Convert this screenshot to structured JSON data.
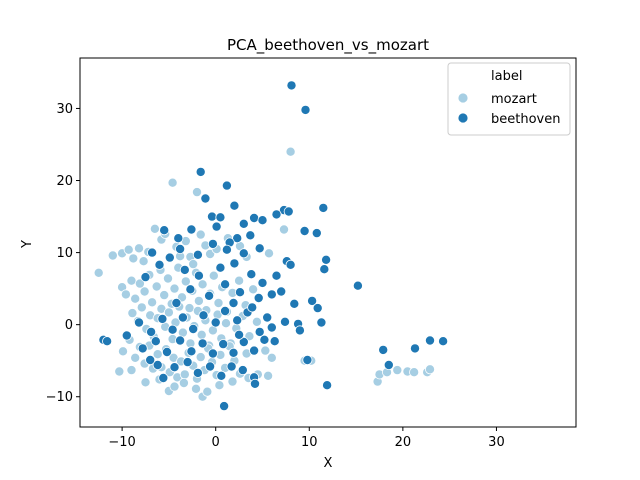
{
  "chart_data": {
    "type": "scatter",
    "title": "PCA_beethoven_vs_mozart",
    "xlabel": "X",
    "ylabel": "Y",
    "xlim": [
      -14.5,
      38.5
    ],
    "ylim": [
      -14.2,
      37.0
    ],
    "xticks": [
      -10,
      0,
      10,
      20,
      30
    ],
    "yticks": [
      -10,
      0,
      10,
      20,
      30
    ],
    "grid": false,
    "legend": {
      "placement": "top-right",
      "title": "label"
    },
    "series": [
      {
        "name": "mozart",
        "color": "#a6cee3",
        "points": [
          [
            -12.5,
            7.2
          ],
          [
            -11.0,
            9.6
          ],
          [
            -10.0,
            9.9
          ],
          [
            -9.3,
            10.4
          ],
          [
            -8.8,
            9.2
          ],
          [
            -8.2,
            10.6
          ],
          [
            -7.7,
            8.8
          ],
          [
            -7.2,
            10.1
          ],
          [
            -6.5,
            13.3
          ],
          [
            -5.8,
            11.8
          ],
          [
            -5.4,
            12.6
          ],
          [
            -4.6,
            19.7
          ],
          [
            -4.2,
            10.8
          ],
          [
            -3.8,
            9.5
          ],
          [
            -3.2,
            11.6
          ],
          [
            -2.7,
            9.4
          ],
          [
            -2.4,
            8.4
          ],
          [
            -2.0,
            18.4
          ],
          [
            -1.6,
            12.5
          ],
          [
            -1.1,
            11.0
          ],
          [
            -0.6,
            9.8
          ],
          [
            0.1,
            10.5
          ],
          [
            1.3,
            12.0
          ],
          [
            2.6,
            10.9
          ],
          [
            3.3,
            9.4
          ],
          [
            5.7,
            9.9
          ],
          [
            8.0,
            24.0
          ],
          [
            7.3,
            13.2
          ],
          [
            -10.0,
            5.2
          ],
          [
            -9.6,
            4.2
          ],
          [
            -9.0,
            6.1
          ],
          [
            -8.6,
            3.6
          ],
          [
            -8.1,
            5.7
          ],
          [
            -7.6,
            4.6
          ],
          [
            -7.1,
            6.9
          ],
          [
            -6.8,
            3.1
          ],
          [
            -6.3,
            5.3
          ],
          [
            -5.9,
            7.6
          ],
          [
            -5.5,
            4.1
          ],
          [
            -5.1,
            6.4
          ],
          [
            -4.7,
            2.9
          ],
          [
            -4.4,
            5.0
          ],
          [
            -4.0,
            7.9
          ],
          [
            -3.6,
            3.8
          ],
          [
            -3.2,
            6.0
          ],
          [
            -2.8,
            2.3
          ],
          [
            -2.5,
            4.7
          ],
          [
            -2.1,
            7.2
          ],
          [
            -1.8,
            3.3
          ],
          [
            -1.4,
            5.6
          ],
          [
            -1.0,
            2.0
          ],
          [
            -0.6,
            4.3
          ],
          [
            -0.2,
            6.8
          ],
          [
            0.3,
            3.0
          ],
          [
            0.7,
            5.2
          ],
          [
            1.2,
            1.8
          ],
          [
            1.8,
            4.4
          ],
          [
            2.5,
            6.1
          ],
          [
            3.2,
            2.7
          ],
          [
            4.0,
            4.9
          ],
          [
            -8.9,
            1.6
          ],
          [
            -8.3,
            0.5
          ],
          [
            -7.9,
            2.4
          ],
          [
            -7.4,
            -0.6
          ],
          [
            -7.0,
            1.3
          ],
          [
            -6.6,
            -1.7
          ],
          [
            -6.2,
            0.9
          ],
          [
            -5.8,
            2.2
          ],
          [
            -5.4,
            -0.3
          ],
          [
            -5.0,
            1.7
          ],
          [
            -4.6,
            -2.0
          ],
          [
            -4.3,
            0.3
          ],
          [
            -3.9,
            2.5
          ],
          [
            -3.5,
            -1.1
          ],
          [
            -3.1,
            1.0
          ],
          [
            -2.7,
            -2.6
          ],
          [
            -2.3,
            -0.2
          ],
          [
            -1.9,
            1.9
          ],
          [
            -1.5,
            -1.4
          ],
          [
            -1.1,
            0.6
          ],
          [
            -0.7,
            -2.9
          ],
          [
            -0.3,
            -0.8
          ],
          [
            0.2,
            1.4
          ],
          [
            0.6,
            -1.9
          ],
          [
            1.1,
            0.2
          ],
          [
            1.6,
            -2.6
          ],
          [
            2.2,
            -0.5
          ],
          [
            2.9,
            1.2
          ],
          [
            3.6,
            -1.6
          ],
          [
            4.4,
            0.4
          ],
          [
            5.3,
            -3.6
          ],
          [
            6.0,
            -4.6
          ],
          [
            -9.9,
            -3.7
          ],
          [
            -9.2,
            -2.1
          ],
          [
            -8.6,
            -4.6
          ],
          [
            -8.1,
            -3.1
          ],
          [
            -7.6,
            -5.4
          ],
          [
            -7.1,
            -2.9
          ],
          [
            -6.7,
            -6.1
          ],
          [
            -6.2,
            -4.1
          ],
          [
            -5.8,
            -5.9
          ],
          [
            -5.3,
            -3.4
          ],
          [
            -4.9,
            -6.6
          ],
          [
            -4.5,
            -4.6
          ],
          [
            -4.1,
            -7.3
          ],
          [
            -3.7,
            -5.1
          ],
          [
            -3.3,
            -6.9
          ],
          [
            -2.9,
            -3.9
          ],
          [
            -2.4,
            -5.7
          ],
          [
            -2.0,
            -7.5
          ],
          [
            -1.6,
            -4.5
          ],
          [
            -1.2,
            -6.3
          ],
          [
            -0.8,
            -3.3
          ],
          [
            -0.4,
            -5.2
          ],
          [
            0.1,
            -7.0
          ],
          [
            0.5,
            -4.2
          ],
          [
            1.0,
            -6.0
          ],
          [
            1.5,
            -3.0
          ],
          [
            2.0,
            -5.0
          ],
          [
            2.6,
            -6.8
          ],
          [
            3.3,
            -4.0
          ],
          [
            -10.3,
            -6.5
          ],
          [
            -9.0,
            -6.3
          ],
          [
            -7.5,
            -8.0
          ],
          [
            -6.0,
            -7.6
          ],
          [
            -5.0,
            -9.2
          ],
          [
            -4.4,
            -8.6
          ],
          [
            -3.4,
            -8.1
          ],
          [
            -2.1,
            -8.9
          ],
          [
            -1.4,
            -10.0
          ],
          [
            -0.9,
            -9.3
          ],
          [
            0.4,
            -8.4
          ],
          [
            1.8,
            -7.9
          ],
          [
            3.5,
            -7.4
          ],
          [
            4.5,
            -6.9
          ],
          [
            5.6,
            -7.1
          ],
          [
            9.5,
            -5.0
          ],
          [
            10.2,
            -5.0
          ],
          [
            17.3,
            -7.9
          ],
          [
            17.5,
            -6.9
          ],
          [
            18.3,
            -6.6
          ],
          [
            19.4,
            -6.3
          ],
          [
            20.5,
            -6.5
          ],
          [
            21.2,
            -6.6
          ],
          [
            22.6,
            -6.6
          ],
          [
            22.9,
            -6.2
          ]
        ]
      },
      {
        "name": "beethoven",
        "color": "#1f78b4",
        "points": [
          [
            8.1,
            33.2
          ],
          [
            9.6,
            29.8
          ],
          [
            -1.6,
            21.2
          ],
          [
            1.2,
            19.3
          ],
          [
            -1.1,
            17.5
          ],
          [
            11.5,
            16.2
          ],
          [
            2.0,
            16.5
          ],
          [
            7.3,
            15.9
          ],
          [
            7.8,
            15.7
          ],
          [
            6.5,
            15.3
          ],
          [
            4.1,
            14.8
          ],
          [
            5.0,
            14.5
          ],
          [
            -0.4,
            15.0
          ],
          [
            0.5,
            14.9
          ],
          [
            3.0,
            14.0
          ],
          [
            9.5,
            13.0
          ],
          [
            10.8,
            12.7
          ],
          [
            0.1,
            13.6
          ],
          [
            -2.6,
            13.2
          ],
          [
            -5.5,
            13.1
          ],
          [
            -4.0,
            12.0
          ],
          [
            2.3,
            12.0
          ],
          [
            3.7,
            12.4
          ],
          [
            1.5,
            11.4
          ],
          [
            -0.3,
            11.2
          ],
          [
            11.8,
            9.0
          ],
          [
            11.6,
            7.7
          ],
          [
            7.6,
            8.8
          ],
          [
            8.0,
            8.3
          ],
          [
            4.7,
            10.6
          ],
          [
            3.0,
            9.9
          ],
          [
            1.2,
            10.4
          ],
          [
            -6.8,
            10.0
          ],
          [
            -7.5,
            6.6
          ],
          [
            -6.0,
            8.3
          ],
          [
            -3.3,
            7.6
          ],
          [
            -1.8,
            6.8
          ],
          [
            0.5,
            7.9
          ],
          [
            2.0,
            8.5
          ],
          [
            3.8,
            7.0
          ],
          [
            5.0,
            5.8
          ],
          [
            6.5,
            6.8
          ],
          [
            6.0,
            4.2
          ],
          [
            7.0,
            4.6
          ],
          [
            4.6,
            3.7
          ],
          [
            2.6,
            4.5
          ],
          [
            1.0,
            5.6
          ],
          [
            -0.7,
            4.0
          ],
          [
            -2.7,
            4.9
          ],
          [
            -4.2,
            3.0
          ],
          [
            15.2,
            5.4
          ],
          [
            8.4,
            2.9
          ],
          [
            10.3,
            3.3
          ],
          [
            10.9,
            2.3
          ],
          [
            7.4,
            0.4
          ],
          [
            8.8,
            0.1
          ],
          [
            11.3,
            0.3
          ],
          [
            9.0,
            -0.8
          ],
          [
            5.5,
            1.0
          ],
          [
            6.0,
            -0.4
          ],
          [
            4.7,
            -1.0
          ],
          [
            3.4,
            1.7
          ],
          [
            2.3,
            0.6
          ],
          [
            1.0,
            1.9
          ],
          [
            0.0,
            0.3
          ],
          [
            -1.3,
            1.3
          ],
          [
            -2.4,
            -0.6
          ],
          [
            -3.5,
            1.0
          ],
          [
            -4.6,
            -0.7
          ],
          [
            -5.7,
            0.8
          ],
          [
            -6.9,
            -1.0
          ],
          [
            -8.2,
            0.3
          ],
          [
            -12.0,
            -2.1
          ],
          [
            -11.6,
            -2.3
          ],
          [
            -9.5,
            -1.5
          ],
          [
            -7.8,
            -3.3
          ],
          [
            -6.4,
            -2.3
          ],
          [
            -5.2,
            -3.8
          ],
          [
            -3.8,
            -2.2
          ],
          [
            -2.6,
            -3.7
          ],
          [
            -1.4,
            -2.6
          ],
          [
            -0.3,
            -4.0
          ],
          [
            0.8,
            -2.7
          ],
          [
            1.9,
            -3.9
          ],
          [
            3.0,
            -2.4
          ],
          [
            4.1,
            -3.6
          ],
          [
            5.2,
            -2.1
          ],
          [
            6.3,
            -2.3
          ],
          [
            9.8,
            -4.9
          ],
          [
            11.9,
            -8.4
          ],
          [
            17.9,
            -3.5
          ],
          [
            18.5,
            -5.6
          ],
          [
            21.3,
            -3.3
          ],
          [
            22.9,
            -2.2
          ],
          [
            24.3,
            -2.3
          ],
          [
            -4.4,
            -5.9
          ],
          [
            -3.0,
            -5.2
          ],
          [
            -1.9,
            -6.7
          ],
          [
            -0.6,
            -5.8
          ],
          [
            0.6,
            -7.1
          ],
          [
            1.7,
            -5.8
          ],
          [
            2.9,
            -6.3
          ],
          [
            4.1,
            -7.3
          ],
          [
            4.2,
            -8.2
          ],
          [
            0.9,
            -11.3
          ],
          [
            -6.2,
            -5.6
          ],
          [
            -7.0,
            -4.9
          ],
          [
            -5.6,
            -7.4
          ],
          [
            -4.9,
            9.3
          ],
          [
            -3.8,
            10.5
          ],
          [
            1.9,
            3.0
          ],
          [
            3.9,
            2.4
          ],
          [
            -1.9,
            9.7
          ],
          [
            2.5,
            -1.4
          ]
        ]
      }
    ]
  }
}
